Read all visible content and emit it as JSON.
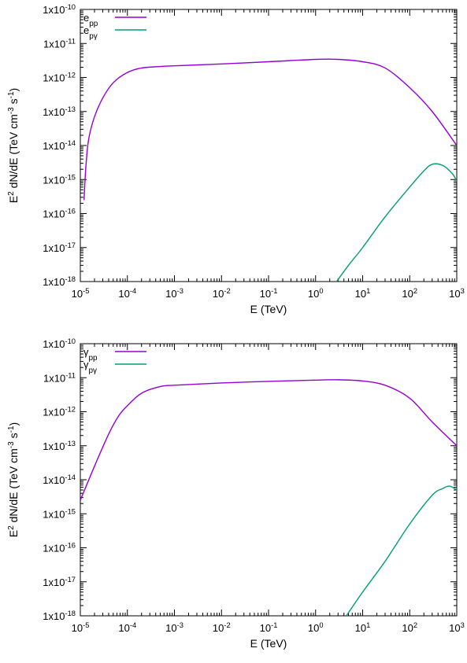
{
  "chart_data": [
    {
      "type": "line",
      "xlabel": "E (TeV)",
      "ylabel": {
        "base": "E",
        "exp": "2",
        "mid": " dN/dE (TeV cm",
        "exp2": "-3",
        "mid2": " s",
        "exp3": "-1",
        "end": ")"
      },
      "x_scale": "log",
      "y_scale": "log",
      "xlim": [
        1e-05,
        1000
      ],
      "ylim": [
        1e-18,
        1e-10
      ],
      "x_ticks": [
        {
          "value": 1e-05,
          "base": "10",
          "exp": "-5"
        },
        {
          "value": 0.0001,
          "base": "10",
          "exp": "-4"
        },
        {
          "value": 0.001,
          "base": "10",
          "exp": "-3"
        },
        {
          "value": 0.01,
          "base": "10",
          "exp": "-2"
        },
        {
          "value": 0.1,
          "base": "10",
          "exp": "-1"
        },
        {
          "value": 1,
          "base": "10",
          "exp": "0"
        },
        {
          "value": 10,
          "base": "10",
          "exp": "1"
        },
        {
          "value": 100,
          "base": "10",
          "exp": "2"
        },
        {
          "value": 1000,
          "base": "10",
          "exp": "3"
        }
      ],
      "y_ticks": [
        {
          "value": 1e-18,
          "base": "1x10",
          "exp": "-18"
        },
        {
          "value": 1e-17,
          "base": "1x10",
          "exp": "-17"
        },
        {
          "value": 1e-16,
          "base": "1x10",
          "exp": "-16"
        },
        {
          "value": 1e-15,
          "base": "1x10",
          "exp": "-15"
        },
        {
          "value": 1e-14,
          "base": "1x10",
          "exp": "-14"
        },
        {
          "value": 1e-13,
          "base": "1x10",
          "exp": "-13"
        },
        {
          "value": 1e-12,
          "base": "1x10",
          "exp": "-12"
        },
        {
          "value": 1e-11,
          "base": "1x10",
          "exp": "-11"
        },
        {
          "value": 1e-10,
          "base": "1x10",
          "exp": "-10"
        }
      ],
      "legend_position": "top-left",
      "series": [
        {
          "name": "e",
          "sub": "pp",
          "color": "#9400d3",
          "x": [
            1.2e-05,
            1.3e-05,
            1.5e-05,
            2e-05,
            3e-05,
            5e-05,
            0.0001,
            0.0002,
            0.0005,
            0.001,
            0.01,
            0.1,
            1,
            3,
            10,
            30,
            100,
            300,
            1000
          ],
          "y": [
            2.5e-16,
            2e-15,
            1.5e-14,
            7e-14,
            2.5e-13,
            7e-13,
            1.4e-12,
            1.9e-12,
            2.1e-12,
            2.2e-12,
            2.5e-12,
            2.9e-12,
            3.4e-12,
            3.4e-12,
            2.9e-12,
            1.9e-12,
            5e-13,
            1e-13,
            1e-14
          ]
        },
        {
          "name": "e",
          "sub": "pγ",
          "color": "#009e73",
          "x": [
            2.8,
            5,
            10,
            30,
            100,
            200,
            300,
            500,
            800,
            1000
          ],
          "y": [
            1e-18,
            3e-18,
            1e-17,
            8e-17,
            6e-16,
            1.8e-15,
            2.8e-15,
            2.6e-15,
            1.5e-15,
            9e-16
          ]
        }
      ]
    },
    {
      "type": "line",
      "xlabel": "E (TeV)",
      "ylabel": {
        "base": "E",
        "exp": "2",
        "mid": " dN/dE (TeV cm",
        "exp2": "-3",
        "mid2": " s",
        "exp3": "-1",
        "end": ")"
      },
      "x_scale": "log",
      "y_scale": "log",
      "xlim": [
        1e-05,
        1000
      ],
      "ylim": [
        1e-18,
        1e-10
      ],
      "x_ticks": [
        {
          "value": 1e-05,
          "base": "10",
          "exp": "-5"
        },
        {
          "value": 0.0001,
          "base": "10",
          "exp": "-4"
        },
        {
          "value": 0.001,
          "base": "10",
          "exp": "-3"
        },
        {
          "value": 0.01,
          "base": "10",
          "exp": "-2"
        },
        {
          "value": 0.1,
          "base": "10",
          "exp": "-1"
        },
        {
          "value": 1,
          "base": "10",
          "exp": "0"
        },
        {
          "value": 10,
          "base": "10",
          "exp": "1"
        },
        {
          "value": 100,
          "base": "10",
          "exp": "2"
        },
        {
          "value": 1000,
          "base": "10",
          "exp": "3"
        }
      ],
      "y_ticks": [
        {
          "value": 1e-18,
          "base": "1x10",
          "exp": "-18"
        },
        {
          "value": 1e-17,
          "base": "1x10",
          "exp": "-17"
        },
        {
          "value": 1e-16,
          "base": "1x10",
          "exp": "-16"
        },
        {
          "value": 1e-15,
          "base": "1x10",
          "exp": "-15"
        },
        {
          "value": 1e-14,
          "base": "1x10",
          "exp": "-14"
        },
        {
          "value": 1e-13,
          "base": "1x10",
          "exp": "-13"
        },
        {
          "value": 1e-12,
          "base": "1x10",
          "exp": "-12"
        },
        {
          "value": 1e-11,
          "base": "1x10",
          "exp": "-11"
        },
        {
          "value": 1e-10,
          "base": "1x10",
          "exp": "-10"
        }
      ],
      "legend_position": "top-left",
      "series": [
        {
          "name": "γ",
          "sub": "pp",
          "color": "#9400d3",
          "x": [
            1e-05,
            2e-05,
            4e-05,
            6.5e-05,
            0.0001,
            0.0002,
            0.0005,
            0.001,
            0.01,
            0.1,
            1,
            3,
            10,
            30,
            100,
            300,
            1000
          ],
          "y": [
            2.5e-15,
            2.5e-14,
            2.2e-13,
            7.5e-13,
            1.5e-12,
            3.5e-12,
            5.5e-12,
            6e-12,
            7e-12,
            7.8e-12,
            8.5e-12,
            8.7e-12,
            8e-12,
            6e-12,
            2.5e-12,
            5e-13,
            1e-13
          ]
        },
        {
          "name": "γ",
          "sub": "pγ",
          "color": "#009e73",
          "x": [
            4.5,
            10,
            30,
            100,
            300,
            500,
            700,
            1000
          ],
          "y": [
            1e-18,
            5e-18,
            4e-17,
            5e-16,
            3.5e-15,
            5.5e-15,
            6.5e-15,
            5e-15
          ]
        }
      ]
    }
  ]
}
